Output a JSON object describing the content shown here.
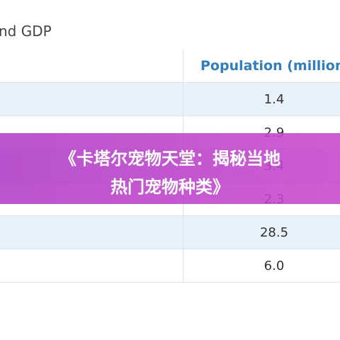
{
  "header": {
    "title": "nd GDP"
  },
  "table": {
    "columns": [
      "Population (million"
    ],
    "rows": [
      [
        "1.4"
      ],
      [
        "2.9"
      ],
      [
        "3.4"
      ],
      [
        "2.3"
      ],
      [
        "28.5"
      ],
      [
        "6.0"
      ]
    ]
  },
  "banner": {
    "lines": [
      "《卡塔尔宠物天堂：揭秘当地",
      "热门宠物种类》"
    ]
  }
}
